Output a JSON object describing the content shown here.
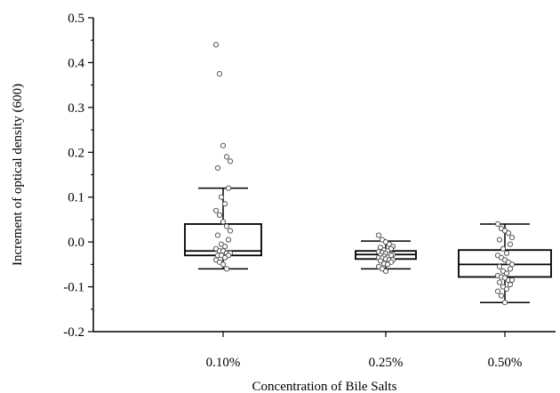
{
  "chart_data": {
    "type": "box",
    "xlabel": "Concentration of Bile Salts",
    "ylabel": "Increment of optical density (600)",
    "ylim": [
      -0.2,
      0.5
    ],
    "yticks": [
      "0.5",
      "0.4",
      "0.3",
      "0.2",
      "0.1",
      "0.0",
      "-0.1",
      "-0.2"
    ],
    "ytick_values": [
      0.5,
      0.4,
      0.3,
      0.2,
      0.1,
      0.0,
      -0.1,
      -0.2
    ],
    "grid": false,
    "categories": [
      "0.10%",
      "0.25%",
      "0.50%"
    ],
    "boxes": [
      {
        "category": "0.10%",
        "whisker_low": -0.06,
        "q1": -0.03,
        "median": -0.02,
        "q3": 0.04,
        "whisker_high": 0.12,
        "points": [
          0.44,
          0.375,
          0.215,
          0.19,
          0.18,
          0.165,
          0.12,
          0.1,
          0.085,
          0.07,
          0.06,
          0.045,
          0.035,
          0.025,
          0.015,
          0.005,
          -0.005,
          -0.01,
          -0.015,
          -0.02,
          -0.02,
          -0.025,
          -0.025,
          -0.03,
          -0.03,
          -0.03,
          -0.035,
          -0.04,
          -0.045,
          -0.05,
          -0.06
        ]
      },
      {
        "category": "0.25%",
        "whisker_low": -0.06,
        "q1": -0.038,
        "median": -0.028,
        "q3": -0.02,
        "whisker_high": 0.002,
        "points": [
          0.015,
          0.005,
          0.0,
          -0.005,
          -0.01,
          -0.012,
          -0.015,
          -0.018,
          -0.02,
          -0.022,
          -0.024,
          -0.026,
          -0.028,
          -0.028,
          -0.03,
          -0.03,
          -0.032,
          -0.034,
          -0.035,
          -0.036,
          -0.038,
          -0.04,
          -0.04,
          -0.042,
          -0.045,
          -0.048,
          -0.05,
          -0.055,
          -0.06,
          -0.065
        ]
      },
      {
        "category": "0.50%",
        "whisker_low": -0.135,
        "q1": -0.078,
        "median": -0.05,
        "q3": -0.018,
        "whisker_high": 0.04,
        "points": [
          0.04,
          0.03,
          0.025,
          0.02,
          0.01,
          0.005,
          -0.005,
          -0.015,
          -0.025,
          -0.03,
          -0.035,
          -0.04,
          -0.045,
          -0.05,
          -0.055,
          -0.06,
          -0.065,
          -0.07,
          -0.075,
          -0.078,
          -0.08,
          -0.085,
          -0.085,
          -0.09,
          -0.095,
          -0.1,
          -0.105,
          -0.11,
          -0.12,
          -0.135
        ]
      }
    ]
  }
}
